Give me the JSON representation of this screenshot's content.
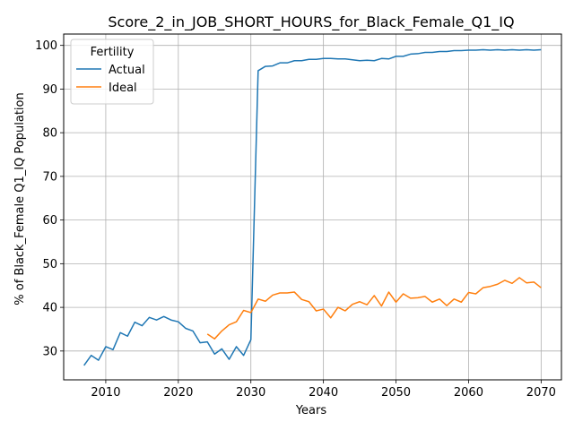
{
  "chart_data": {
    "type": "line",
    "title": "Score_2_in_JOB_SHORT_HOURS_for_Black_Female_Q1_IQ",
    "xlabel": "Years",
    "ylabel": "% of Black_Female Q1_IQ Population",
    "xlim": [
      2004.2,
      2072.8
    ],
    "ylim": [
      23.4,
      102.6
    ],
    "xticks": [
      2010,
      2020,
      2030,
      2040,
      2050,
      2060,
      2070
    ],
    "yticks": [
      30,
      40,
      50,
      60,
      70,
      80,
      90,
      100
    ],
    "grid": true,
    "legend": {
      "title": "Fertility",
      "placement": "top-left"
    },
    "x": [
      2007,
      2008,
      2009,
      2010,
      2011,
      2012,
      2013,
      2014,
      2015,
      2016,
      2017,
      2018,
      2019,
      2020,
      2021,
      2022,
      2023,
      2024,
      2025,
      2026,
      2027,
      2028,
      2029,
      2030,
      2031,
      2032,
      2033,
      2034,
      2035,
      2036,
      2037,
      2038,
      2039,
      2040,
      2041,
      2042,
      2043,
      2044,
      2045,
      2046,
      2047,
      2048,
      2049,
      2050,
      2051,
      2052,
      2053,
      2054,
      2055,
      2056,
      2057,
      2058,
      2059,
      2060,
      2061,
      2062,
      2063,
      2064,
      2065,
      2066,
      2067,
      2068,
      2069,
      2070
    ],
    "series": [
      {
        "name": "Actual",
        "color": "#1f77b4",
        "values": [
          26.7,
          29.0,
          27.9,
          31.0,
          30.3,
          34.2,
          33.4,
          36.6,
          35.8,
          37.7,
          37.1,
          37.9,
          37.1,
          36.7,
          35.2,
          34.6,
          31.9,
          32.1,
          29.3,
          30.5,
          28.1,
          31.0,
          29.0,
          32.6,
          94.2,
          95.2,
          95.3,
          96.0,
          96.0,
          96.5,
          96.5,
          96.8,
          96.8,
          97.0,
          97.0,
          96.9,
          96.9,
          96.7,
          96.5,
          96.6,
          96.5,
          97.0,
          96.9,
          97.5,
          97.5,
          98.0,
          98.1,
          98.4,
          98.4,
          98.6,
          98.6,
          98.8,
          98.8,
          98.9,
          98.9,
          99.0,
          98.9,
          99.0,
          98.9,
          99.0,
          98.9,
          99.0,
          98.9,
          99.0
        ]
      },
      {
        "name": "Ideal",
        "color": "#ff7f0e",
        "values": [
          null,
          null,
          null,
          null,
          null,
          null,
          null,
          null,
          null,
          null,
          null,
          null,
          null,
          null,
          null,
          null,
          null,
          33.9,
          32.8,
          34.6,
          36.0,
          36.7,
          39.3,
          38.8,
          41.9,
          41.4,
          42.8,
          43.3,
          43.3,
          43.5,
          41.8,
          41.3,
          39.2,
          39.6,
          37.6,
          40.0,
          39.2,
          40.7,
          41.3,
          40.6,
          42.7,
          40.3,
          43.5,
          41.2,
          43.1,
          42.1,
          42.2,
          42.5,
          41.2,
          41.9,
          40.4,
          41.9,
          41.2,
          43.4,
          43.1,
          44.5,
          44.8,
          45.3,
          46.2,
          45.5,
          46.8,
          45.6,
          45.8,
          44.5
        ]
      }
    ]
  }
}
